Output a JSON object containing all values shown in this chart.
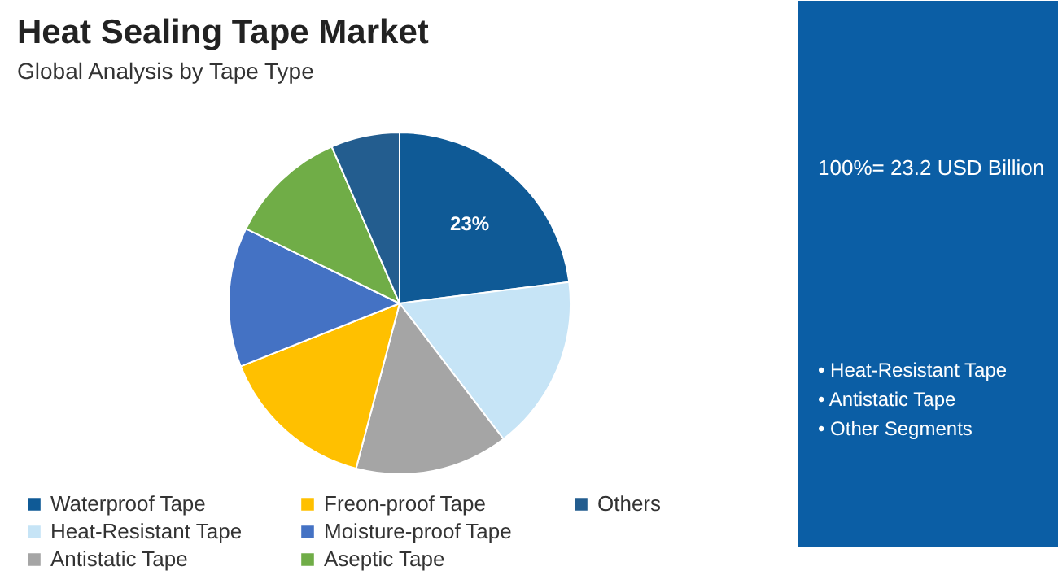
{
  "chart_data": {
    "type": "pie",
    "title": "Heat Sealing Tape Market",
    "subtitle": "Global Analysis by Tape Type",
    "categories": [
      "Waterproof Tape",
      "Heat-Resistant Tape",
      "Antistatic Tape",
      "Freon-proof Tape",
      "Moisture-proof Tape",
      "Aseptic Tape",
      "Others"
    ],
    "values": [
      23,
      16.6,
      14.5,
      14.9,
      13.2,
      11.3,
      6.5
    ],
    "colors": [
      "#0f5a96",
      "#c6e4f6",
      "#a5a5a5",
      "#ffc000",
      "#4472c4",
      "#70ad47",
      "#235d8f"
    ],
    "value_labels": [
      "23%",
      null,
      null,
      null,
      null,
      null,
      null
    ],
    "legend": "bottom",
    "annotations": [
      "100%= 23.2 USD Billion",
      "• Heat-Resistant Tape",
      "• Antistatic Tape",
      "• Other Segments"
    ]
  }
}
